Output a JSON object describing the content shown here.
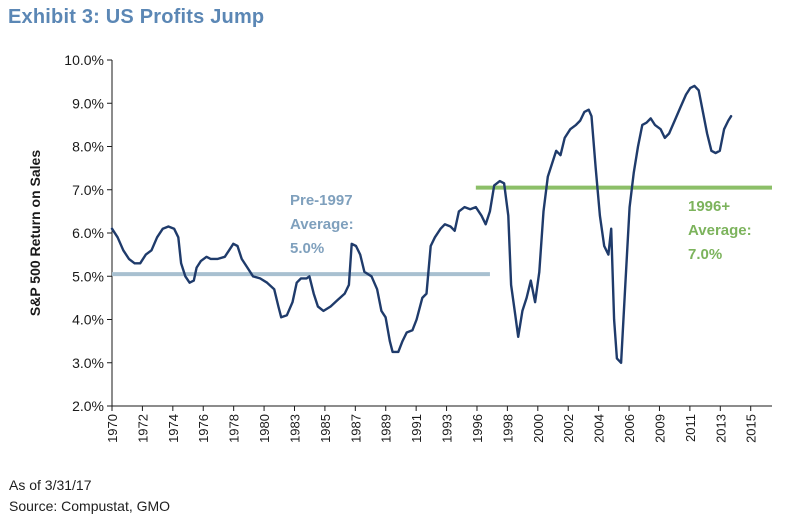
{
  "title": "Exhibit 3: US Profits Jump",
  "footer": {
    "as_of": "As of 3/31/17",
    "source": "Source: Compustat, GMO"
  },
  "colors": {
    "series": "#1f3b6b",
    "pre_line": "#a8c0d0",
    "pre_text": "#7fa0bd",
    "post_line": "#8cbf68",
    "post_text": "#7cb35c",
    "axis": "#1a1a1a"
  },
  "chart_data": {
    "type": "line",
    "ylabel": "S&P 500 Return on Sales",
    "xlabel": "",
    "ylim": [
      2.0,
      10.0
    ],
    "xlim": [
      1970,
      2016.8
    ],
    "yticks": [
      "2.0%",
      "3.0%",
      "4.0%",
      "5.0%",
      "6.0%",
      "7.0%",
      "8.0%",
      "9.0%",
      "10.0%"
    ],
    "ytick_values": [
      2,
      3,
      4,
      5,
      6,
      7,
      8,
      9,
      10
    ],
    "xticks": [
      "1970",
      "1972",
      "1974",
      "1976",
      "1978",
      "1980",
      "1983",
      "1985",
      "1987",
      "1989",
      "1991",
      "1993",
      "1996",
      "1998",
      "2000",
      "2002",
      "2004",
      "2006",
      "2009",
      "2011",
      "2013",
      "2015"
    ],
    "grid": false,
    "legend": "none",
    "series": [
      {
        "points": [
          [
            1970.0,
            6.1
          ],
          [
            1970.4,
            5.9
          ],
          [
            1970.8,
            5.6
          ],
          [
            1971.2,
            5.4
          ],
          [
            1971.6,
            5.3
          ],
          [
            1972.0,
            5.3
          ],
          [
            1972.4,
            5.5
          ],
          [
            1972.8,
            5.6
          ],
          [
            1973.2,
            5.9
          ],
          [
            1973.6,
            6.1
          ],
          [
            1974.0,
            6.15
          ],
          [
            1974.4,
            6.1
          ],
          [
            1974.7,
            5.9
          ],
          [
            1974.9,
            5.3
          ],
          [
            1975.2,
            5.0
          ],
          [
            1975.5,
            4.85
          ],
          [
            1975.8,
            4.9
          ],
          [
            1976.0,
            5.2
          ],
          [
            1976.3,
            5.35
          ],
          [
            1976.7,
            5.45
          ],
          [
            1977.0,
            5.4
          ],
          [
            1977.5,
            5.4
          ],
          [
            1978.0,
            5.45
          ],
          [
            1978.3,
            5.6
          ],
          [
            1978.6,
            5.75
          ],
          [
            1978.9,
            5.7
          ],
          [
            1979.2,
            5.4
          ],
          [
            1979.6,
            5.2
          ],
          [
            1980.0,
            5.0
          ],
          [
            1980.5,
            4.95
          ],
          [
            1981.0,
            4.85
          ],
          [
            1981.5,
            4.7
          ],
          [
            1981.8,
            4.3
          ],
          [
            1982.0,
            4.05
          ],
          [
            1982.4,
            4.1
          ],
          [
            1982.8,
            4.4
          ],
          [
            1983.1,
            4.85
          ],
          [
            1983.4,
            4.95
          ],
          [
            1983.8,
            4.95
          ],
          [
            1984.0,
            5.0
          ],
          [
            1984.3,
            4.6
          ],
          [
            1984.6,
            4.3
          ],
          [
            1985.0,
            4.2
          ],
          [
            1985.5,
            4.3
          ],
          [
            1986.0,
            4.45
          ],
          [
            1986.5,
            4.6
          ],
          [
            1986.8,
            4.8
          ],
          [
            1987.0,
            5.75
          ],
          [
            1987.3,
            5.7
          ],
          [
            1987.6,
            5.5
          ],
          [
            1987.9,
            5.1
          ],
          [
            1988.4,
            5.0
          ],
          [
            1988.8,
            4.7
          ],
          [
            1989.1,
            4.2
          ],
          [
            1989.4,
            4.05
          ],
          [
            1989.7,
            3.5
          ],
          [
            1989.9,
            3.25
          ],
          [
            1990.3,
            3.25
          ],
          [
            1990.6,
            3.5
          ],
          [
            1990.9,
            3.7
          ],
          [
            1991.3,
            3.75
          ],
          [
            1991.6,
            4.0
          ],
          [
            1992.0,
            4.5
          ],
          [
            1992.3,
            4.6
          ],
          [
            1992.6,
            5.7
          ],
          [
            1992.9,
            5.9
          ],
          [
            1993.3,
            6.1
          ],
          [
            1993.6,
            6.2
          ],
          [
            1994.0,
            6.15
          ],
          [
            1994.3,
            6.05
          ],
          [
            1994.6,
            6.5
          ],
          [
            1995.0,
            6.6
          ],
          [
            1995.4,
            6.55
          ],
          [
            1995.8,
            6.6
          ],
          [
            1996.2,
            6.4
          ],
          [
            1996.5,
            6.2
          ],
          [
            1996.8,
            6.5
          ],
          [
            1997.1,
            7.1
          ],
          [
            1997.5,
            7.2
          ],
          [
            1997.8,
            7.15
          ],
          [
            1998.1,
            6.4
          ],
          [
            1998.3,
            4.8
          ],
          [
            1998.6,
            4.1
          ],
          [
            1998.8,
            3.6
          ],
          [
            1999.1,
            4.2
          ],
          [
            1999.4,
            4.5
          ],
          [
            1999.7,
            4.9
          ],
          [
            2000.0,
            4.4
          ],
          [
            2000.3,
            5.1
          ],
          [
            2000.6,
            6.5
          ],
          [
            2000.9,
            7.3
          ],
          [
            2001.2,
            7.6
          ],
          [
            2001.5,
            7.9
          ],
          [
            2001.8,
            7.8
          ],
          [
            2002.1,
            8.2
          ],
          [
            2002.5,
            8.4
          ],
          [
            2002.9,
            8.5
          ],
          [
            2003.2,
            8.6
          ],
          [
            2003.5,
            8.8
          ],
          [
            2003.8,
            8.85
          ],
          [
            2004.0,
            8.7
          ],
          [
            2004.3,
            7.5
          ],
          [
            2004.6,
            6.4
          ],
          [
            2004.9,
            5.7
          ],
          [
            2005.2,
            5.5
          ],
          [
            2005.4,
            6.1
          ],
          [
            2005.6,
            4.0
          ],
          [
            2005.8,
            3.1
          ],
          [
            2006.1,
            3.0
          ],
          [
            2006.4,
            4.8
          ],
          [
            2006.7,
            6.6
          ],
          [
            2007.0,
            7.4
          ],
          [
            2007.3,
            8.0
          ],
          [
            2007.6,
            8.5
          ],
          [
            2007.9,
            8.55
          ],
          [
            2008.2,
            8.65
          ],
          [
            2008.5,
            8.5
          ],
          [
            2008.9,
            8.4
          ],
          [
            2009.2,
            8.2
          ],
          [
            2009.5,
            8.3
          ],
          [
            2009.9,
            8.6
          ],
          [
            2010.3,
            8.9
          ],
          [
            2010.7,
            9.2
          ],
          [
            2011.0,
            9.35
          ],
          [
            2011.3,
            9.4
          ],
          [
            2011.6,
            9.3
          ],
          [
            2011.9,
            8.8
          ],
          [
            2012.2,
            8.3
          ],
          [
            2012.5,
            7.9
          ],
          [
            2012.8,
            7.85
          ],
          [
            2013.1,
            7.9
          ],
          [
            2013.4,
            8.4
          ],
          [
            2013.7,
            8.6
          ],
          [
            2013.9,
            8.7
          ]
        ]
      }
    ],
    "reference_lines": [
      {
        "id": "pre",
        "y": 5.05,
        "x_start": 1970,
        "x_end": 1996.8,
        "label_lines": [
          "Pre-1997",
          "Average:",
          "5.0%"
        ]
      },
      {
        "id": "post",
        "y": 7.05,
        "x_start": 1995.8,
        "x_end": 2016.8,
        "label_lines": [
          "1996+",
          "Average:",
          "7.0%"
        ]
      }
    ]
  }
}
